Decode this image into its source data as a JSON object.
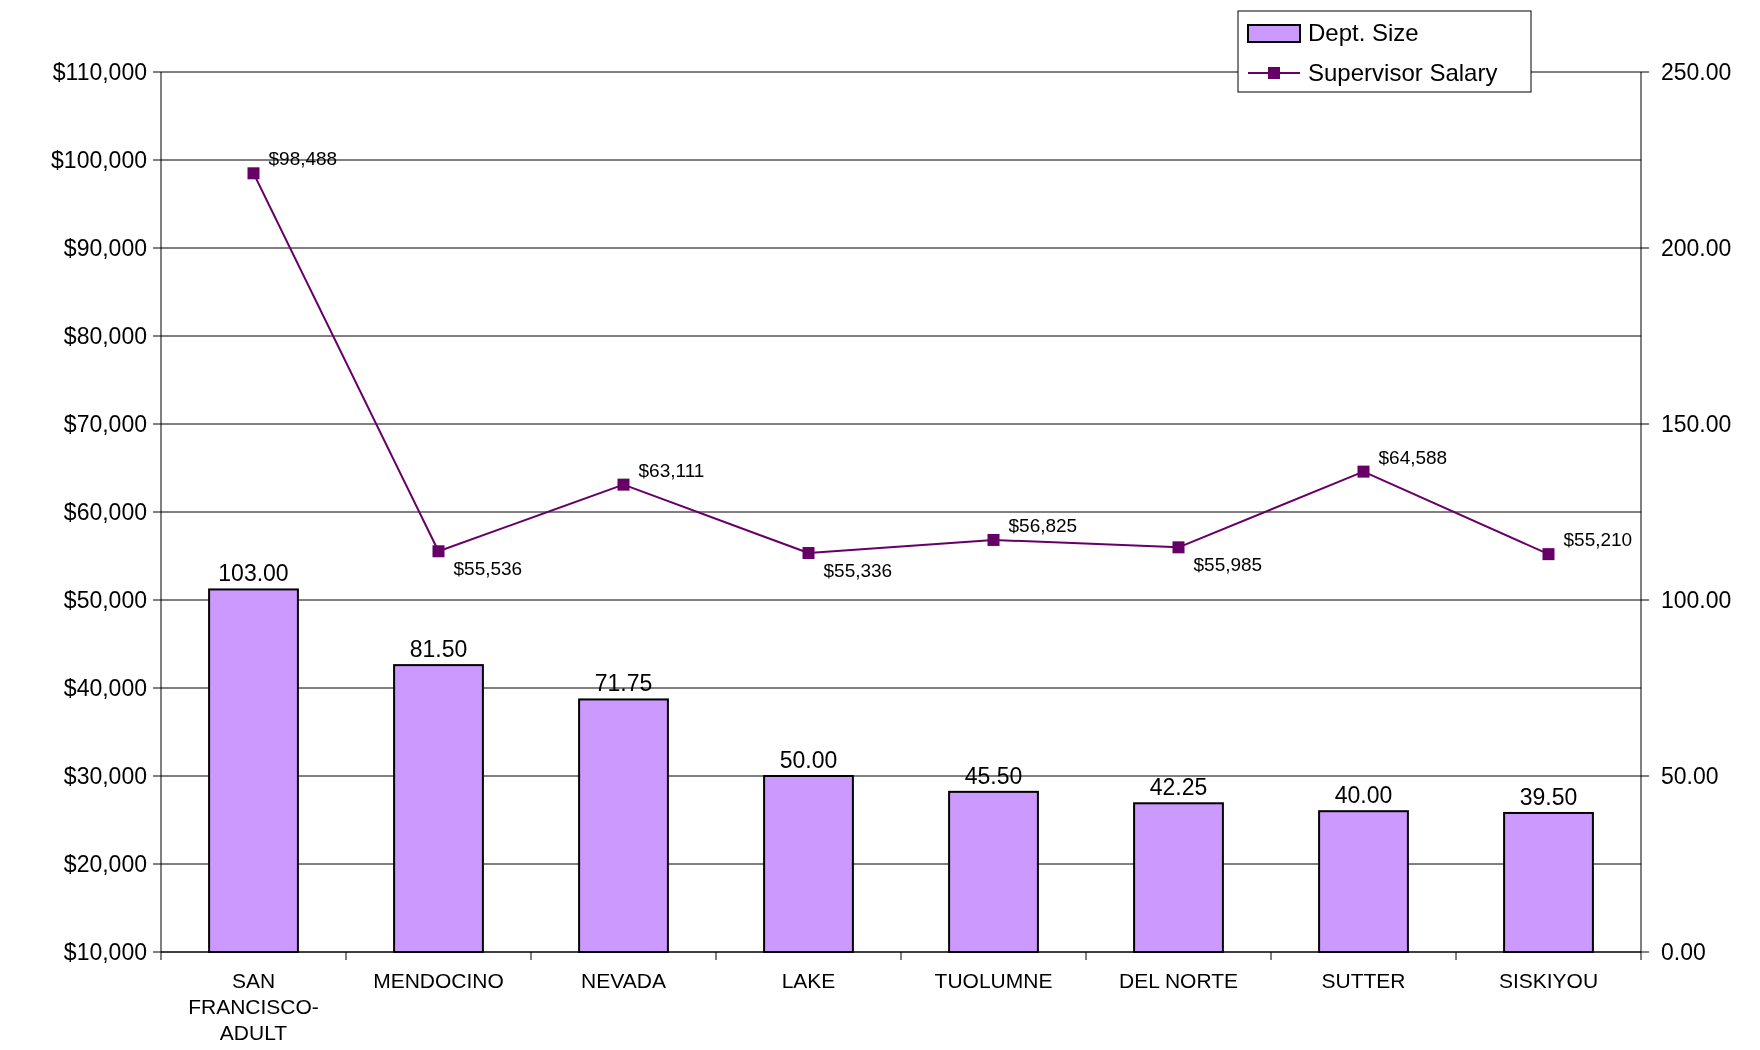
{
  "chart_data": {
    "type": "bar",
    "categories": [
      "SAN FRANCISCO-ADULT",
      "MENDOCINO",
      "NEVADA",
      "LAKE",
      "TUOLUMNE",
      "DEL NORTE",
      "SUTTER",
      "SISKIYOU"
    ],
    "series": [
      {
        "name": "Dept. Size",
        "axis": "y2",
        "color": "#cc99ff",
        "values": [
          103,
          81.5,
          71.75,
          50,
          45.5,
          42.25,
          40,
          39.5
        ],
        "value_labels": [
          "103.00",
          "81.50",
          "71.75",
          "50.00",
          "45.50",
          "42.25",
          "40.00",
          "39.50"
        ]
      },
      {
        "name": "Supervisor Salary",
        "type": "line",
        "color": "#660066",
        "values": [
          98488,
          55536,
          63111,
          55336,
          56825,
          55985,
          64588,
          55210
        ],
        "value_labels": [
          "$98,488",
          "$55,536",
          "$63,111",
          "$55,336",
          "$56,825",
          "$55,985",
          "$64,588",
          "$55,210"
        ],
        "marker": "square"
      }
    ],
    "ylim": [
      10000,
      110000
    ],
    "yticks": [
      {
        "value": 10000,
        "label": "$10,000"
      },
      {
        "value": 20000,
        "label": "$20,000"
      },
      {
        "value": 30000,
        "label": "$30,000"
      },
      {
        "value": 40000,
        "label": "$40,000"
      },
      {
        "value": 50000,
        "label": "$50,000"
      },
      {
        "value": 60000,
        "label": "$60,000"
      },
      {
        "value": 70000,
        "label": "$70,000"
      },
      {
        "value": 80000,
        "label": "$80,000"
      },
      {
        "value": 90000,
        "label": "$90,000"
      },
      {
        "value": 100000,
        "label": "$100,000"
      },
      {
        "value": 110000,
        "label": "$110,000"
      }
    ],
    "y2lim": [
      0,
      250
    ],
    "y2ticks": [
      {
        "value": 0,
        "label": "0.00"
      },
      {
        "value": 50,
        "label": "50.00"
      },
      {
        "value": 100,
        "label": "100.00"
      },
      {
        "value": 150,
        "label": "150.00"
      },
      {
        "value": 200,
        "label": "200.00"
      },
      {
        "value": 250,
        "label": "250.00"
      }
    ],
    "grid": "y",
    "legend": "top right"
  }
}
